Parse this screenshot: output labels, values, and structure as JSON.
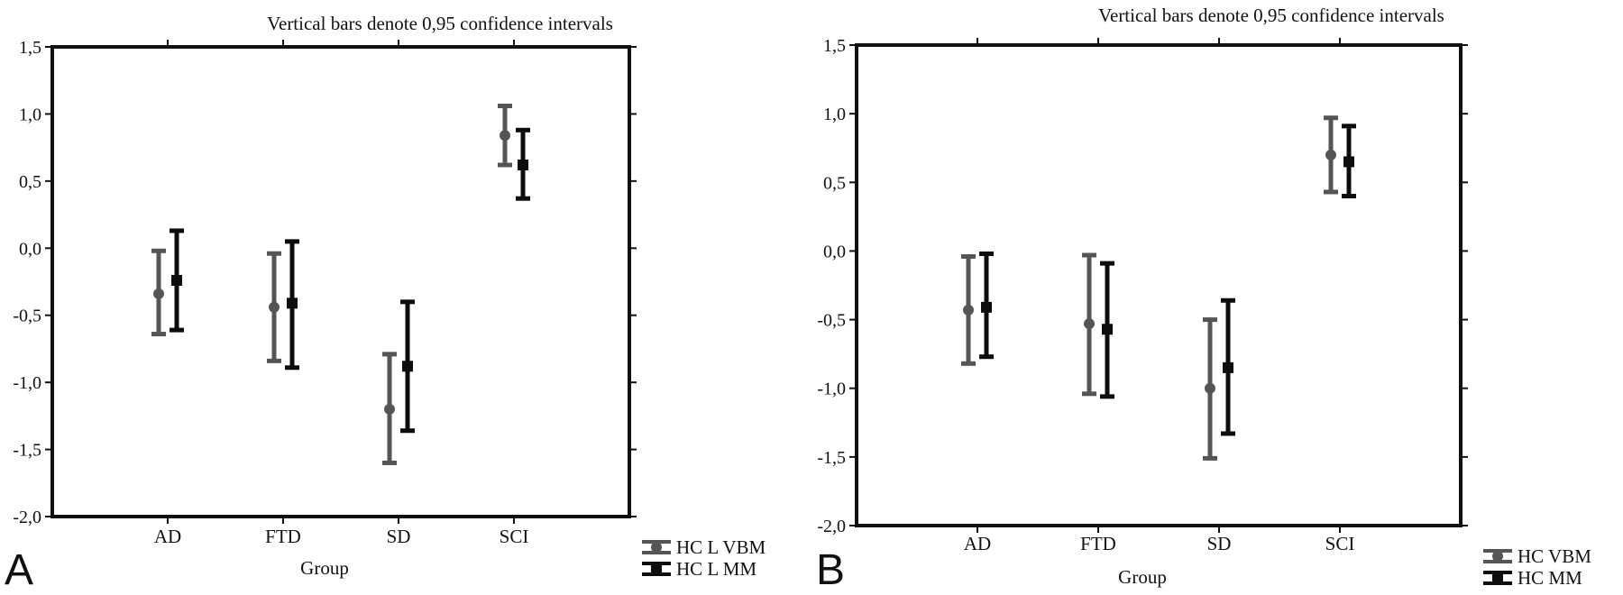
{
  "chart_data": [
    {
      "type": "scatter",
      "panel_label": "A",
      "title": "Vertical bars denote 0,95 confidence intervals",
      "xlabel": "Group",
      "ylabel": "",
      "ylim": [
        -2.0,
        1.5
      ],
      "yticks": [
        "1,5",
        "1,0",
        "0,5",
        "0,0",
        "-0,5",
        "-1,0",
        "-1,5",
        "-2,0"
      ],
      "categories": [
        "AD",
        "FTD",
        "SD",
        "SCI"
      ],
      "series": [
        {
          "name": "HC L VBM",
          "color": "#555555",
          "marker": "circle",
          "values": [
            -0.34,
            -0.44,
            -1.2,
            0.84
          ],
          "lower": [
            -0.64,
            -0.84,
            -1.6,
            0.62
          ],
          "upper": [
            -0.02,
            -0.04,
            -0.79,
            1.06
          ]
        },
        {
          "name": "HC L MM",
          "color": "#0d0d0d",
          "marker": "square",
          "values": [
            -0.24,
            -0.41,
            -0.88,
            0.62
          ],
          "lower": [
            -0.61,
            -0.89,
            -1.36,
            0.37
          ],
          "upper": [
            0.13,
            0.05,
            -0.4,
            0.88
          ]
        }
      ],
      "grid": false,
      "legend_position": "bottom-right"
    },
    {
      "type": "scatter",
      "panel_label": "B",
      "title": "Vertical bars denote 0,95 confidence intervals",
      "xlabel": "Group",
      "ylabel": "",
      "ylim": [
        -2.0,
        1.5
      ],
      "yticks": [
        "1,5",
        "1,0",
        "0,5",
        "0,0",
        "-0,5",
        "-1,0",
        "-1,5",
        "-2,0"
      ],
      "categories": [
        "AD",
        "FTD",
        "SD",
        "SCI"
      ],
      "series": [
        {
          "name": "HC VBM",
          "color": "#555555",
          "marker": "circle",
          "values": [
            -0.43,
            -0.53,
            -1.0,
            0.7
          ],
          "lower": [
            -0.82,
            -1.04,
            -1.51,
            0.43
          ],
          "upper": [
            -0.04,
            -0.03,
            -0.5,
            0.97
          ]
        },
        {
          "name": "HC  MM",
          "color": "#0d0d0d",
          "marker": "square",
          "values": [
            -0.41,
            -0.57,
            -0.85,
            0.65
          ],
          "lower": [
            -0.77,
            -1.06,
            -1.33,
            0.4
          ],
          "upper": [
            -0.02,
            -0.09,
            -0.36,
            0.91
          ]
        }
      ],
      "grid": false,
      "legend_position": "bottom-right"
    }
  ]
}
